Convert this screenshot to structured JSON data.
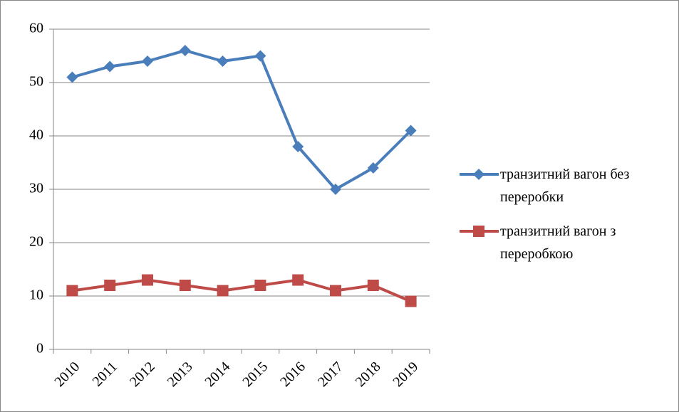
{
  "chart_data": {
    "type": "line",
    "categories": [
      "2010",
      "2011",
      "2012",
      "2013",
      "2014",
      "2015",
      "2016",
      "2017",
      "2018",
      "2019"
    ],
    "series": [
      {
        "name": "транзитний вагон без переробки",
        "color": "#4a7ebb",
        "marker": "diamond",
        "values": [
          51,
          53,
          54,
          56,
          54,
          55,
          38,
          30,
          34,
          41
        ]
      },
      {
        "name": "транзитний вагон з переробкою",
        "color": "#be4b48",
        "marker": "square",
        "values": [
          11,
          12,
          13,
          12,
          11,
          12,
          13,
          11,
          12,
          9
        ]
      }
    ],
    "ylim": [
      0,
      60
    ],
    "yticks": [
      0,
      10,
      20,
      30,
      40,
      50,
      60
    ],
    "grid": true,
    "legend": "right"
  }
}
